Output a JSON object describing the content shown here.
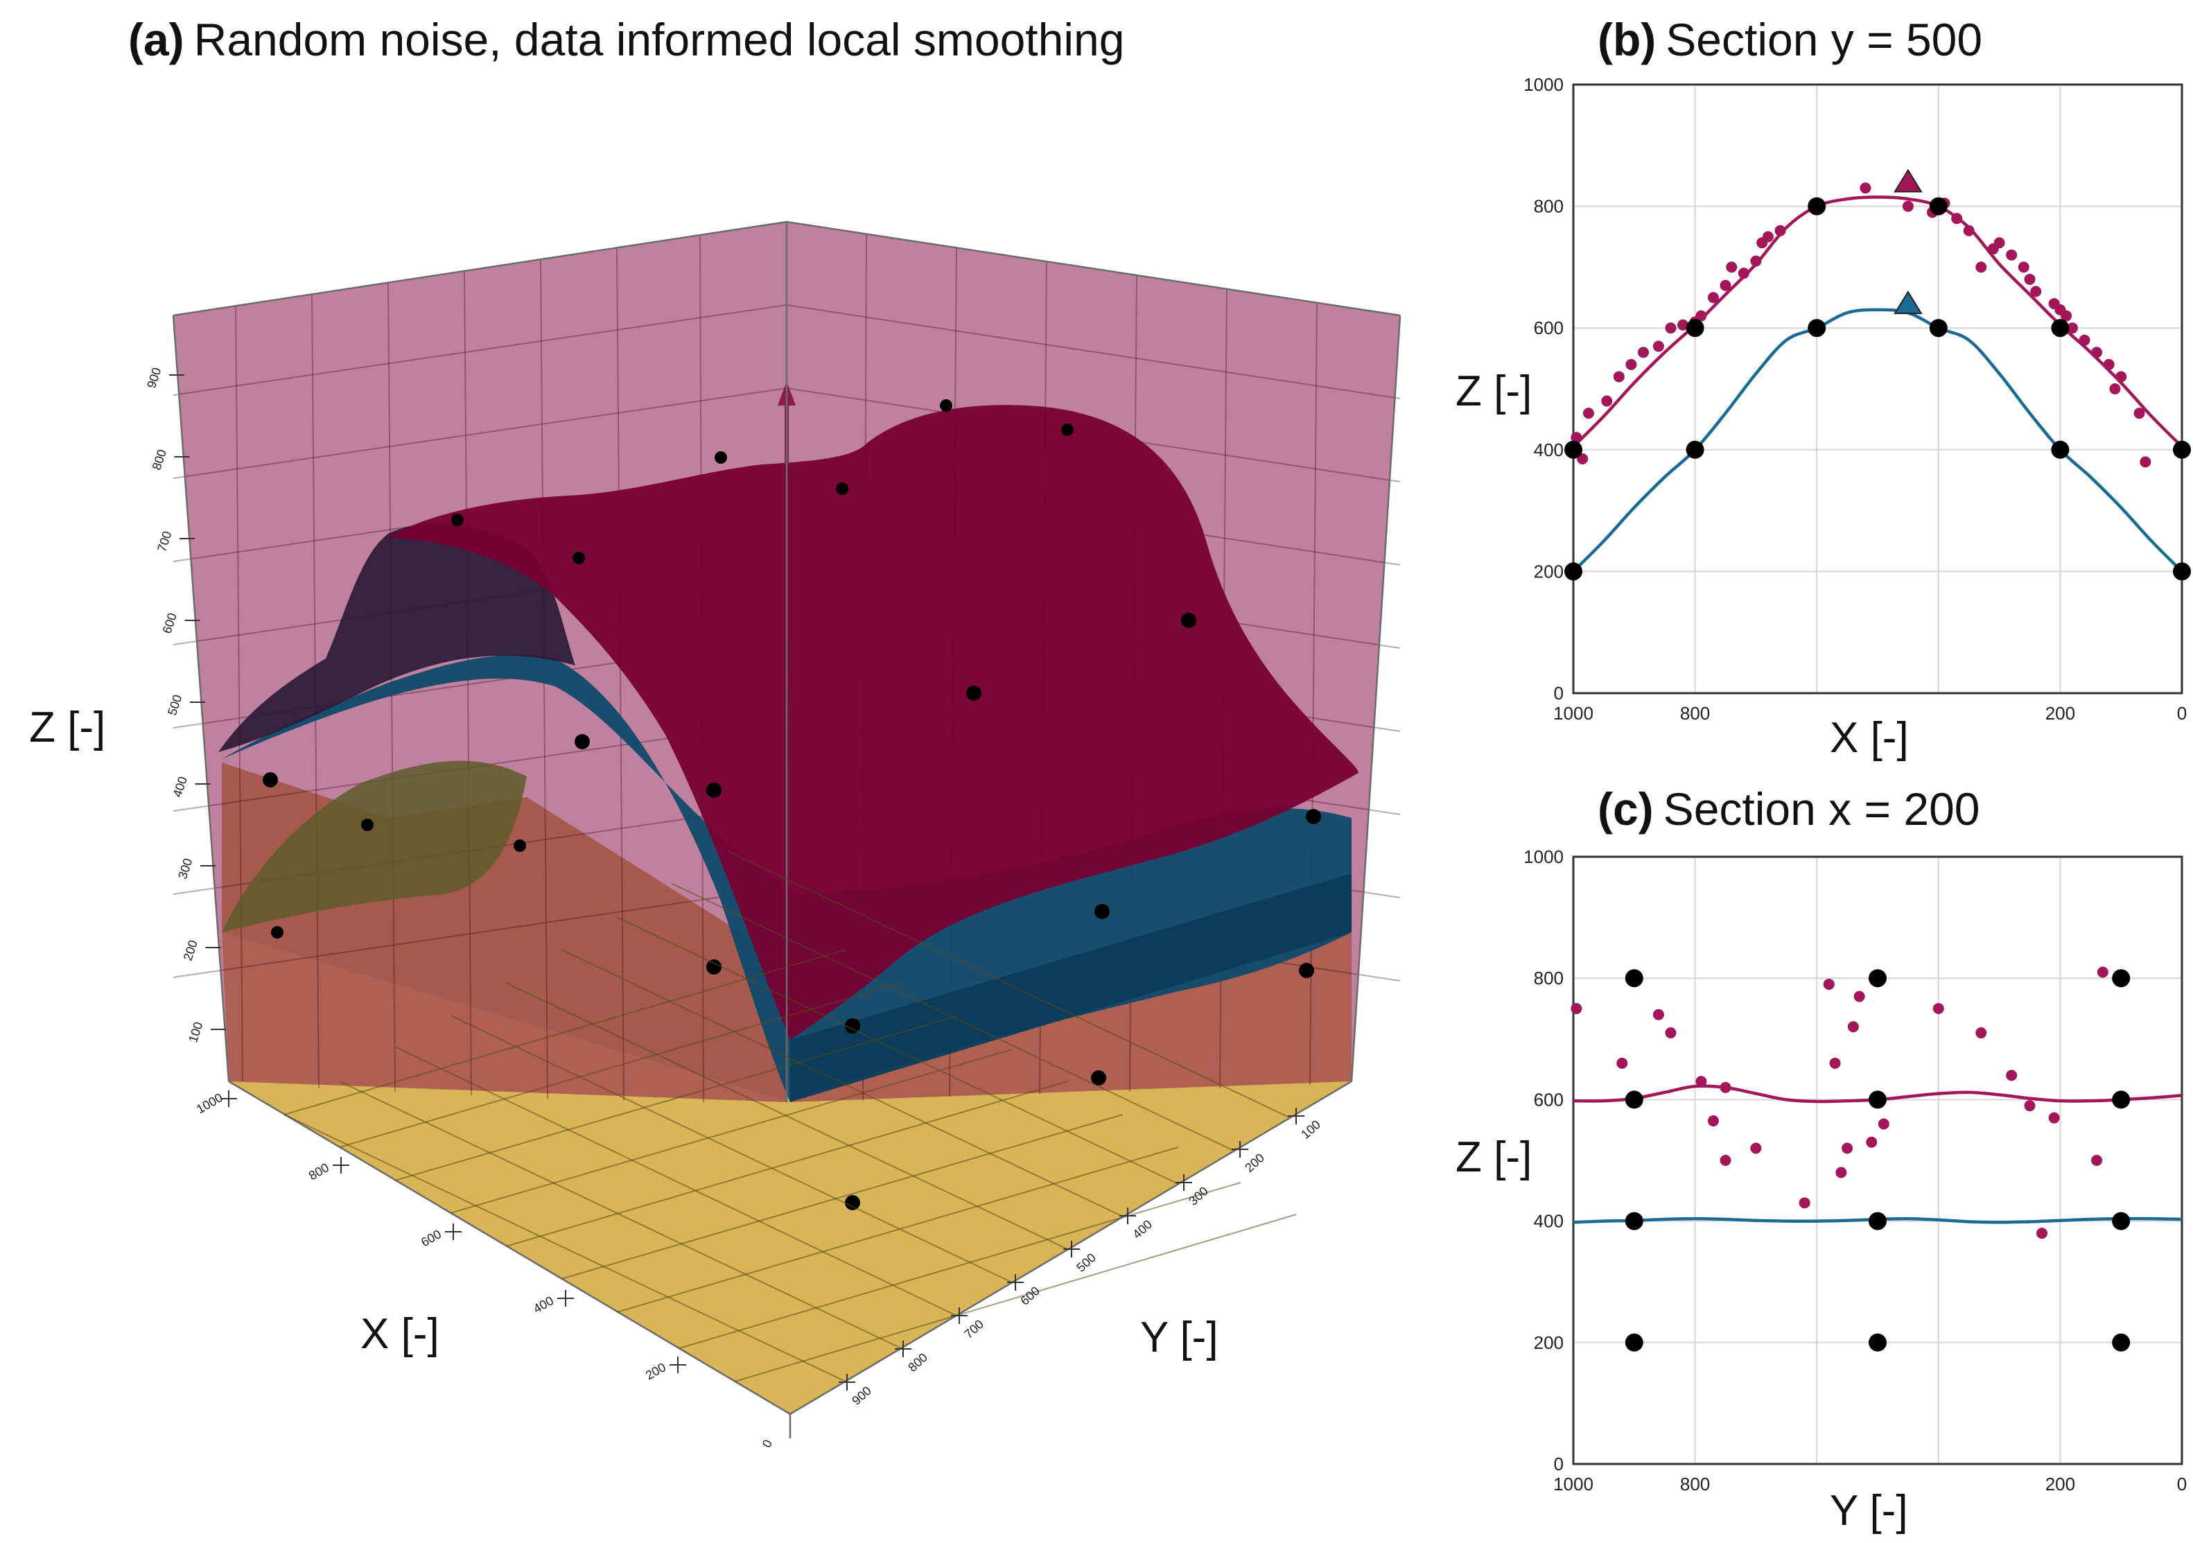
{
  "panel_a": {
    "tag": "(a)",
    "title": "Random noise, data informed local smoothing",
    "zlabel": "Z [-]",
    "xlabel": "X [-]",
    "ylabel": "Y [-]",
    "z_ticks": [
      "100",
      "200",
      "300",
      "400",
      "500",
      "600",
      "700",
      "800",
      "900"
    ],
    "x_ticks": [
      "1000",
      "800",
      "600",
      "400",
      "200"
    ],
    "y_ticks": [
      "100",
      "200",
      "300",
      "400",
      "500",
      "600",
      "700",
      "800",
      "900"
    ],
    "origin_label": "0",
    "colors": {
      "top": "#8a0f45",
      "middle": "#0f4a6b",
      "bottom": "#c9a236",
      "box_top": "#8c1a4e"
    }
  },
  "chart_data": [
    {
      "type": "line",
      "panel": "b",
      "tag": "(b)",
      "title": "Section y = 500",
      "xlabel": "X [-]",
      "ylabel": "Z [-]",
      "xlim": [
        1000,
        0
      ],
      "ylim": [
        0,
        1000
      ],
      "x_tick_labels": [
        "1000",
        "800",
        "200",
        "0"
      ],
      "y_tick_labels": [
        "0",
        "200",
        "400",
        "600",
        "800",
        "1000"
      ],
      "x_tick_values": [
        1000,
        800,
        200,
        0
      ],
      "y_tick_values": [
        0,
        200,
        400,
        600,
        800,
        1000
      ],
      "grid_x": [
        1000,
        800,
        600,
        400,
        200,
        0
      ],
      "grid_y": [
        0,
        200,
        400,
        600,
        800,
        1000
      ],
      "series": [
        {
          "name": "upper surface",
          "color": "#a3165a",
          "x": [
            1000,
            950,
            900,
            850,
            800,
            750,
            700,
            650,
            600,
            550,
            500,
            450,
            400,
            350,
            300,
            250,
            200,
            150,
            100,
            50,
            0
          ],
          "y": [
            405,
            455,
            510,
            560,
            605,
            655,
            705,
            765,
            800,
            812,
            815,
            812,
            800,
            765,
            705,
            655,
            605,
            560,
            510,
            455,
            405
          ]
        },
        {
          "name": "lower surface",
          "color": "#1a6a96",
          "x": [
            1000,
            950,
            900,
            850,
            800,
            750,
            700,
            650,
            600,
            550,
            500,
            450,
            400,
            350,
            300,
            250,
            200,
            150,
            100,
            50,
            0
          ],
          "y": [
            200,
            250,
            305,
            355,
            400,
            460,
            525,
            580,
            600,
            625,
            630,
            625,
            600,
            580,
            525,
            460,
            400,
            355,
            305,
            250,
            200
          ]
        }
      ],
      "scatter": [
        {
          "name": "noisy data",
          "color": "#a3165a",
          "x": [
            995,
            985,
            975,
            945,
            925,
            905,
            885,
            860,
            840,
            820,
            800,
            790,
            770,
            750,
            740,
            720,
            700,
            690,
            680,
            660,
            520,
            450,
            410,
            390,
            370,
            350,
            330,
            310,
            300,
            280,
            260,
            250,
            240,
            210,
            200,
            190,
            180,
            160,
            140,
            120,
            110,
            100,
            70,
            60
          ],
          "y": [
            420,
            385,
            460,
            480,
            520,
            540,
            560,
            570,
            600,
            605,
            610,
            620,
            650,
            670,
            700,
            690,
            710,
            740,
            750,
            760,
            830,
            800,
            790,
            805,
            780,
            760,
            700,
            730,
            740,
            720,
            700,
            680,
            660,
            640,
            630,
            620,
            600,
            580,
            560,
            540,
            500,
            520,
            460,
            380
          ]
        },
        {
          "name": "control points",
          "color": "#000000",
          "x": [
            1000,
            1000,
            800,
            800,
            600,
            600,
            400,
            400,
            200,
            200,
            0,
            0
          ],
          "y": [
            200,
            400,
            400,
            600,
            600,
            800,
            600,
            800,
            400,
            600,
            200,
            400
          ]
        }
      ],
      "markers": [
        {
          "name": "upper peak",
          "x": 450,
          "y": 840,
          "color": "#a3165a",
          "shape": "triangle"
        },
        {
          "name": "lower peak",
          "x": 450,
          "y": 640,
          "color": "#1a6a96",
          "shape": "triangle"
        }
      ]
    },
    {
      "type": "line",
      "panel": "c",
      "tag": "(c)",
      "title": "Section x = 200",
      "xlabel": "Y [-]",
      "ylabel": "Z [-]",
      "xlim": [
        1000,
        0
      ],
      "ylim": [
        0,
        1000
      ],
      "x_tick_labels": [
        "1000",
        "800",
        "200",
        "0"
      ],
      "y_tick_labels": [
        "0",
        "200",
        "400",
        "600",
        "800",
        "1000"
      ],
      "x_tick_values": [
        1000,
        800,
        200,
        0
      ],
      "y_tick_values": [
        0,
        200,
        400,
        600,
        800,
        1000
      ],
      "grid_x": [
        1000,
        800,
        600,
        400,
        200,
        0
      ],
      "grid_y": [
        0,
        200,
        400,
        600,
        800,
        1000
      ],
      "series": [
        {
          "name": "upper surface",
          "color": "#a3165a",
          "x": [
            1000,
            950,
            900,
            850,
            800,
            750,
            700,
            650,
            600,
            550,
            500,
            450,
            400,
            350,
            300,
            250,
            200,
            150,
            100,
            50,
            0
          ],
          "y": [
            598,
            598,
            602,
            612,
            622,
            620,
            610,
            600,
            597,
            598,
            600,
            605,
            610,
            612,
            608,
            602,
            598,
            598,
            600,
            603,
            607
          ]
        },
        {
          "name": "lower surface",
          "color": "#1a6a96",
          "x": [
            1000,
            950,
            900,
            850,
            800,
            750,
            700,
            650,
            600,
            550,
            500,
            450,
            400,
            350,
            300,
            250,
            200,
            150,
            100,
            50,
            0
          ],
          "y": [
            398,
            400,
            401,
            403,
            404,
            403,
            401,
            400,
            400,
            401,
            403,
            404,
            402,
            399,
            398,
            399,
            401,
            403,
            404,
            404,
            403
          ]
        }
      ],
      "scatter": [
        {
          "name": "noisy data",
          "color": "#a3165a",
          "x": [
            995,
            920,
            860,
            840,
            790,
            770,
            750,
            750,
            700,
            620,
            580,
            570,
            560,
            550,
            540,
            530,
            510,
            490,
            400,
            330,
            280,
            250,
            230,
            210,
            140,
            130
          ],
          "y": [
            750,
            660,
            740,
            710,
            630,
            565,
            500,
            620,
            520,
            430,
            790,
            660,
            480,
            520,
            720,
            770,
            530,
            560,
            750,
            710,
            640,
            590,
            380,
            570,
            500,
            810
          ]
        },
        {
          "name": "control points",
          "color": "#000000",
          "x": [
            900,
            900,
            900,
            900,
            500,
            500,
            500,
            500,
            100,
            100,
            100,
            100
          ],
          "y": [
            200,
            400,
            600,
            800,
            200,
            400,
            600,
            800,
            200,
            400,
            600,
            800
          ]
        }
      ],
      "markers": []
    }
  ]
}
